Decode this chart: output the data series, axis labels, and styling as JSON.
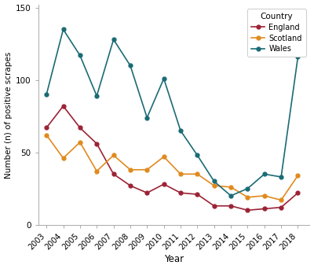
{
  "years": [
    2003,
    2004,
    2005,
    2006,
    2007,
    2008,
    2009,
    2010,
    2011,
    2012,
    2013,
    2014,
    2015,
    2016,
    2017,
    2018
  ],
  "england": [
    67,
    82,
    67,
    56,
    35,
    27,
    22,
    28,
    22,
    21,
    13,
    13,
    10,
    11,
    12,
    22
  ],
  "scotland": [
    62,
    46,
    57,
    37,
    48,
    38,
    38,
    47,
    35,
    35,
    27,
    26,
    19,
    20,
    17,
    34
  ],
  "wales": [
    90,
    135,
    117,
    89,
    128,
    110,
    74,
    101,
    65,
    48,
    30,
    20,
    25,
    35,
    33,
    116
  ],
  "england_color": "#9B2335",
  "scotland_color": "#E08A1E",
  "wales_color": "#1B6B75",
  "xlabel": "Year",
  "ylabel": "Number (n) of positive scrapes",
  "ylim": [
    0,
    152
  ],
  "yticks": [
    0,
    50,
    100,
    150
  ],
  "legend_title": "Country",
  "background_color": "#ffffff",
  "panel_color": "#ffffff"
}
